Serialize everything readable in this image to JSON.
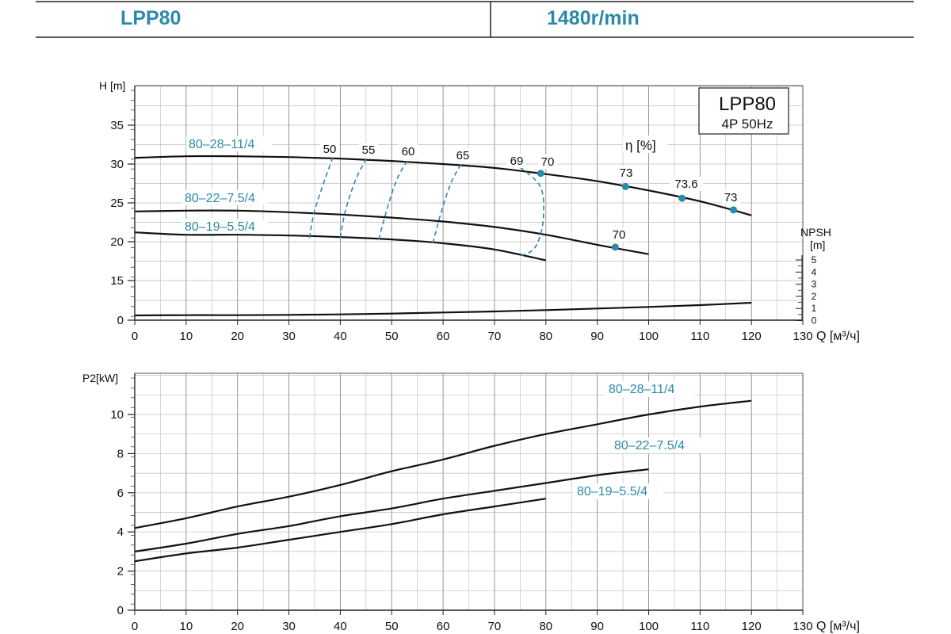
{
  "header": {
    "model": "LPP80",
    "speed": "1480r/min"
  },
  "colors": {
    "accent": "#2a8aa8",
    "curve": "#111111",
    "grid": "#999999",
    "dash": "#2a8aa8"
  },
  "chart_data": [
    {
      "type": "line",
      "name": "head-chart",
      "ylabel": "H [m]",
      "xlabel": "Q [м³/ч]",
      "xlim": [
        0,
        130
      ],
      "x_ticks": [
        "0",
        "10",
        "20",
        "30",
        "40",
        "50",
        "60",
        "70",
        "80",
        "90",
        "100",
        "110",
        "120",
        "130"
      ],
      "y_ticks": [
        {
          "label": "0",
          "v": 0
        },
        {
          "label": "15",
          "v": 15
        },
        {
          "label": "20",
          "v": 20
        },
        {
          "label": "25",
          "v": 25
        },
        {
          "label": "30",
          "v": 30
        },
        {
          "label": "35",
          "v": 35
        }
      ],
      "title_box": {
        "line1": "LPP80",
        "line2": "4P  50Hz"
      },
      "efficiency_label": "η [%]",
      "npsh_axis": {
        "label": "NPSH",
        "unit": "[m]",
        "ticks": [
          "5",
          "4",
          "3",
          "2",
          "1",
          "0"
        ]
      },
      "series": [
        {
          "name": "80–28–11/4",
          "x": [
            0,
            10,
            20,
            30,
            40,
            50,
            60,
            70,
            80,
            90,
            100,
            110,
            120
          ],
          "y": [
            30.8,
            31.0,
            31.0,
            30.9,
            30.7,
            30.4,
            30.0,
            29.5,
            28.7,
            27.8,
            26.6,
            25.2,
            23.4
          ]
        },
        {
          "name": "80–22–7.5/4",
          "x": [
            0,
            10,
            20,
            30,
            40,
            50,
            60,
            70,
            80,
            90,
            100
          ],
          "y": [
            23.9,
            24.0,
            24.0,
            23.8,
            23.5,
            23.1,
            22.6,
            21.9,
            20.9,
            19.6,
            18.4
          ]
        },
        {
          "name": "80–19–5.5/4",
          "x": [
            0,
            10,
            20,
            30,
            40,
            50,
            60,
            70,
            80
          ],
          "y": [
            21.2,
            20.9,
            20.9,
            20.8,
            20.6,
            20.3,
            19.8,
            19.0,
            17.6
          ]
        },
        {
          "name": "",
          "x": [
            0,
            10,
            20,
            30,
            40,
            50,
            60,
            70,
            80,
            90,
            100,
            110,
            120
          ],
          "y": [
            1.8,
            1.9,
            1.9,
            2.0,
            2.2,
            2.5,
            2.9,
            3.3,
            3.8,
            4.4,
            5.0,
            5.7,
            6.6
          ]
        }
      ],
      "efficiency_contours": [
        {
          "label": "50",
          "x": [
            34,
            35,
            37,
            38.5
          ],
          "y": [
            20.5,
            24,
            28,
            30.8
          ]
        },
        {
          "label": "55",
          "x": [
            40,
            41,
            43,
            45
          ],
          "y": [
            20.5,
            24,
            28,
            30.6
          ]
        },
        {
          "label": "60",
          "x": [
            47.5,
            49,
            51,
            53
          ],
          "y": [
            20.3,
            24,
            28,
            30.4
          ]
        },
        {
          "label": "65",
          "x": [
            58,
            59.5,
            61.5,
            63.5
          ],
          "y": [
            19.8,
            23.5,
            27.5,
            30
          ]
        },
        {
          "label": "69",
          "x": [
            75,
            79,
            79.5,
            78.5,
            77,
            75
          ],
          "y": [
            29.6,
            27,
            23,
            20,
            18.7,
            18.2
          ]
        }
      ],
      "efficiency_points": [
        {
          "label": "70",
          "x": 79,
          "y": 28.8
        },
        {
          "label": "73",
          "x": 95.5,
          "y": 27.1
        },
        {
          "label": "73.6",
          "x": 106.5,
          "y": 25.6
        },
        {
          "label": "73",
          "x": 116.5,
          "y": 24.1
        },
        {
          "label": "70",
          "x": 93.5,
          "y": 19.3
        }
      ]
    },
    {
      "type": "line",
      "name": "power-chart",
      "ylabel": "P2[kW]",
      "xlabel": "Q [м³/ч]",
      "xlim": [
        0,
        130
      ],
      "ylim": [
        0,
        12
      ],
      "x_ticks": [
        "0",
        "10",
        "20",
        "30",
        "40",
        "50",
        "60",
        "70",
        "80",
        "90",
        "100",
        "110",
        "120",
        "130"
      ],
      "y_ticks": [
        {
          "label": "0",
          "v": 0
        },
        {
          "label": "2",
          "v": 2
        },
        {
          "label": "4",
          "v": 4
        },
        {
          "label": "6",
          "v": 6
        },
        {
          "label": "8",
          "v": 8
        },
        {
          "label": "10",
          "v": 10
        }
      ],
      "series": [
        {
          "name": "80–28–11/4",
          "x": [
            0,
            10,
            20,
            30,
            40,
            50,
            60,
            70,
            80,
            90,
            100,
            110,
            120
          ],
          "y": [
            4.2,
            4.7,
            5.3,
            5.8,
            6.4,
            7.1,
            7.7,
            8.4,
            9.0,
            9.5,
            10.0,
            10.4,
            10.7
          ]
        },
        {
          "name": "80–22–7.5/4",
          "x": [
            0,
            10,
            20,
            30,
            40,
            50,
            60,
            70,
            80,
            90,
            100
          ],
          "y": [
            3.0,
            3.4,
            3.9,
            4.3,
            4.8,
            5.2,
            5.7,
            6.1,
            6.5,
            6.9,
            7.2
          ]
        },
        {
          "name": "80–19–5.5/4",
          "x": [
            0,
            10,
            20,
            30,
            40,
            50,
            60,
            70,
            80
          ],
          "y": [
            2.5,
            2.9,
            3.2,
            3.6,
            4.0,
            4.4,
            4.9,
            5.3,
            5.7
          ]
        }
      ]
    }
  ]
}
